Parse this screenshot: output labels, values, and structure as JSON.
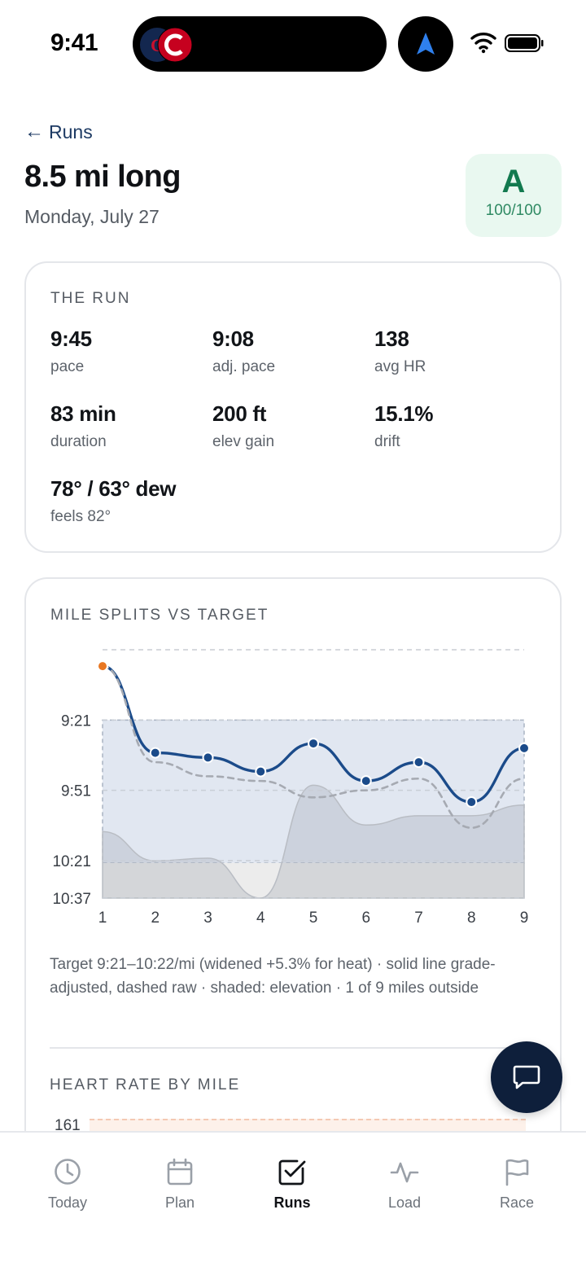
{
  "status_bar": {
    "time": "9:41"
  },
  "header": {
    "back_label": "Runs",
    "title": "8.5 mi long",
    "date": "Monday, July 27",
    "grade": {
      "letter": "A",
      "score": "100/100",
      "bg_color": "#e9f8f0",
      "text_color": "#127a4f"
    }
  },
  "run_card": {
    "title": "THE RUN",
    "stats": [
      {
        "value": "9:45",
        "label": "pace"
      },
      {
        "value": "9:08",
        "label": "adj. pace"
      },
      {
        "value": "138",
        "label": "avg HR"
      },
      {
        "value": "83 min",
        "label": "duration"
      },
      {
        "value": "200 ft",
        "label": "elev gain"
      },
      {
        "value": "15.1%",
        "label": "drift"
      },
      {
        "value": "78° / 63° dew",
        "label": "feels 82°"
      }
    ]
  },
  "splits_card": {
    "title": "MILE SPLITS VS TARGET",
    "note": "Target 9:21–10:22/mi (widened +5.3% for heat) · solid line grade-adjusted, dashed raw · shaded: elevation · 1 of 9 miles outside",
    "hr_title": "HEART RATE BY MILE",
    "hr_first_tick": "161"
  },
  "chart_data": {
    "type": "line",
    "x": [
      1,
      2,
      3,
      4,
      5,
      6,
      7,
      8,
      9
    ],
    "x_tick_labels": [
      "1",
      "2",
      "3",
      "4",
      "5",
      "6",
      "7",
      "8",
      "9"
    ],
    "y_tick_labels": [
      "9:21",
      "9:51",
      "10:21",
      "10:37"
    ],
    "y_tick_seconds": [
      561,
      591,
      621,
      637
    ],
    "ylim_seconds": [
      531,
      637
    ],
    "y_inverted": true,
    "target_band_seconds": [
      561,
      622
    ],
    "series": [
      {
        "name": "grade-adjusted",
        "style": "solid",
        "color": "#1b4b8a",
        "values_seconds": [
          538,
          575,
          577,
          583,
          571,
          587,
          579,
          596,
          573
        ],
        "outside_color": "#e87722"
      },
      {
        "name": "raw",
        "style": "dashed",
        "color": "#a6aab2",
        "values_seconds": [
          538,
          579,
          585,
          587,
          594,
          591,
          586,
          607,
          586
        ]
      }
    ],
    "elevation_relative": [
      0.5,
      0.28,
      0.3,
      0.0,
      0.85,
      0.55,
      0.62,
      0.62,
      0.7
    ],
    "band_color": "#e1e7f1",
    "grid": true
  },
  "tabs": [
    {
      "label": "Today",
      "icon": "clock-icon",
      "active": false
    },
    {
      "label": "Plan",
      "icon": "calendar-icon",
      "active": false
    },
    {
      "label": "Runs",
      "icon": "checkbox-icon",
      "active": true
    },
    {
      "label": "Load",
      "icon": "pulse-icon",
      "active": false
    },
    {
      "label": "Race",
      "icon": "flag-icon",
      "active": false
    }
  ]
}
